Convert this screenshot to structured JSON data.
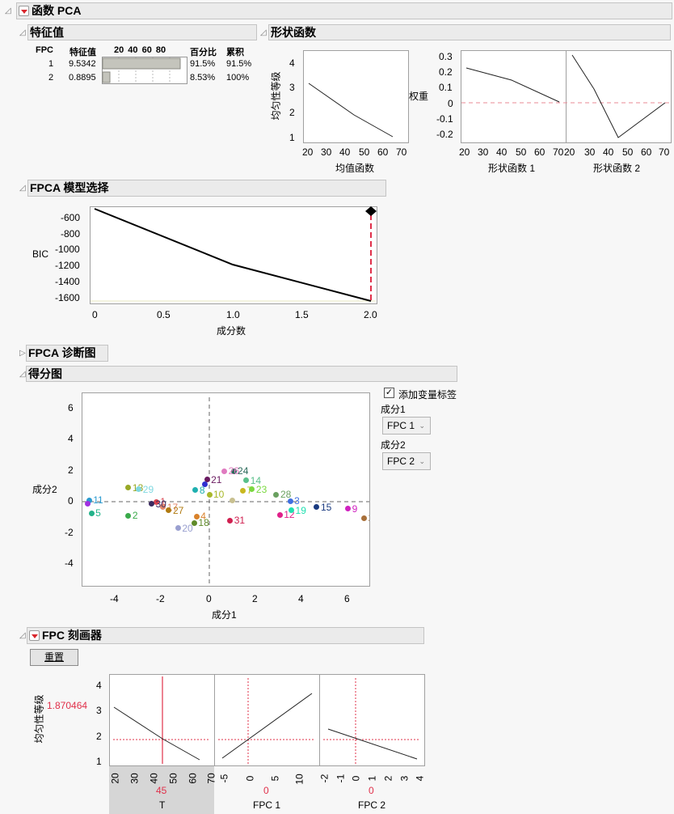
{
  "report": {
    "title": "函数 PCA"
  },
  "eigenvalues": {
    "title": "特征值",
    "columns": [
      "FPC",
      "特征值",
      "20 40 60 80",
      "百分比",
      "累积"
    ],
    "bar_ticks": [
      "20",
      "40",
      "60",
      "80"
    ],
    "rows": [
      {
        "fpc": "1",
        "eigenvalue": "9.5342",
        "percent": "91.5%",
        "cumulative": "91.5%",
        "bar_pct": 91.5
      },
      {
        "fpc": "2",
        "eigenvalue": "0.8895",
        "percent": "8.53%",
        "cumulative": "100%",
        "bar_pct": 8.53
      }
    ]
  },
  "shape_functions": {
    "title": "形状函数",
    "mean_plot": {
      "ylabel": "均匀性等级",
      "xlabel": "均值函数",
      "y_ticks": [
        "4",
        "3",
        "2",
        "1"
      ],
      "x_ticks": [
        "20",
        "30",
        "40",
        "50",
        "60",
        "70"
      ]
    },
    "weight_plot": {
      "ylabel": "权重",
      "y_ticks": [
        "0.3",
        "0.2",
        "0.1",
        "0",
        "-0.1",
        "-0.2"
      ],
      "panels": [
        {
          "xlabel": "形状函数 1",
          "x_ticks": [
            "20",
            "30",
            "40",
            "50",
            "60",
            "70"
          ]
        },
        {
          "xlabel": "形状函数 2",
          "x_ticks": [
            "20",
            "30",
            "40",
            "50",
            "60",
            "70"
          ]
        }
      ]
    }
  },
  "model_selection": {
    "title": "FPCA 模型选择",
    "ylabel": "BIC",
    "xlabel": "成分数",
    "y_ticks": [
      "-600",
      "-800",
      "-1000",
      "-1200",
      "-1400",
      "-1600"
    ],
    "x_ticks": [
      "0",
      "0.5",
      "1.0",
      "1.5",
      "2.0"
    ]
  },
  "diagnostics": {
    "title": "FPCA 诊断图"
  },
  "score_plot": {
    "title": "得分图",
    "ylabel": "成分2",
    "xlabel": "成分1",
    "y_ticks": [
      "6",
      "4",
      "2",
      "0",
      "-2",
      "-4"
    ],
    "x_ticks": [
      "-4",
      "-2",
      "0",
      "2",
      "4",
      "6"
    ],
    "add_labels_checkbox": "添加变量标签",
    "add_labels_checked": true,
    "component1_label": "成分1",
    "component1_value": "FPC 1",
    "component2_label": "成分2",
    "component2_value": "FPC 2"
  },
  "profiler": {
    "title": "FPC 刻画器",
    "reset_button": "重置",
    "ylabel": "均匀性等级",
    "current_y": "1.870464",
    "y_ticks": [
      "4",
      "3",
      "2",
      "1"
    ],
    "panels": [
      {
        "name": "T",
        "value": "45",
        "x_ticks": [
          "20",
          "30",
          "40",
          "50",
          "60",
          "70"
        ]
      },
      {
        "name": "FPC 1",
        "value": "0",
        "x_ticks": [
          "-5",
          "0",
          "5",
          "10"
        ]
      },
      {
        "name": "FPC 2",
        "value": "0",
        "x_ticks": [
          "-2",
          "-1",
          "0",
          "1",
          "2",
          "3",
          "4"
        ]
      }
    ]
  },
  "colors": {
    "accent_red": "#e0304a",
    "zero_line": "#e98a96",
    "section_bg": "#ebebeb",
    "bar_fill": "#c4c4bc"
  },
  "chart_data": [
    {
      "type": "bar",
      "title": "特征值",
      "categories": [
        "FPC 1",
        "FPC 2"
      ],
      "values": [
        91.5,
        8.53
      ],
      "xlabel": "百分比",
      "ylim": [
        0,
        100
      ]
    },
    {
      "type": "line",
      "title": "均值函数",
      "x": [
        20,
        45,
        70
      ],
      "values": [
        3.15,
        1.87,
        1.0
      ],
      "xlabel": "均值函数",
      "ylabel": "均匀性等级",
      "ylim": [
        0.8,
        4.5
      ]
    },
    {
      "type": "line",
      "title": "形状函数",
      "x": [
        20,
        45,
        70
      ],
      "series": [
        {
          "name": "形状函数 1",
          "values": [
            0.22,
            0.145,
            0.005
          ]
        },
        {
          "name": "形状函数 2",
          "values": [
            0.3,
            -0.215,
            0.005
          ]
        }
      ],
      "ylabel": "权重",
      "ylim": [
        -0.25,
        0.33
      ]
    },
    {
      "type": "line",
      "title": "FPCA 模型选择",
      "x": [
        0,
        1,
        2
      ],
      "values": [
        -490,
        -1190,
        -1630
      ],
      "xlabel": "成分数",
      "ylabel": "BIC",
      "ylim": [
        -1670,
        -480
      ],
      "annotations": [
        "selected: 2"
      ]
    },
    {
      "type": "scatter",
      "title": "得分图",
      "xlabel": "成分1",
      "ylabel": "成分2",
      "xlim": [
        -5.4,
        7.0
      ],
      "ylim": [
        -5.5,
        6.8
      ],
      "points": [
        {
          "label": "1",
          "x": -2.3,
          "y": 0.0,
          "color": "#d9434e"
        },
        {
          "label": "2",
          "x": -3.5,
          "y": -0.9,
          "color": "#3aaa4a"
        },
        {
          "label": "3",
          "x": 3.5,
          "y": 0.05,
          "color": "#3f6fe0"
        },
        {
          "label": "4",
          "x": -0.55,
          "y": -0.95,
          "color": "#d9822b"
        },
        {
          "label": "5",
          "x": -5.1,
          "y": -0.75,
          "color": "#22b38a"
        },
        {
          "label": "7",
          "x": 1.45,
          "y": 0.7,
          "color": "#c9b81f"
        },
        {
          "label": "8",
          "x": -0.6,
          "y": 0.75,
          "color": "#1fb0b0"
        },
        {
          "label": "9",
          "x": 6.0,
          "y": -0.45,
          "color": "#d022c0"
        },
        {
          "label": "10",
          "x": 0.0,
          "y": 0.45,
          "color": "#a8b82a"
        },
        {
          "label": "11",
          "x": -5.2,
          "y": 0.1,
          "color": "#2a9ad0"
        },
        {
          "label": "12",
          "x": 3.05,
          "y": -0.85,
          "color": "#e0208a"
        },
        {
          "label": "13",
          "x": -3.5,
          "y": 0.9,
          "color": "#98a826"
        },
        {
          "label": "14",
          "x": 1.6,
          "y": 1.35,
          "color": "#5ac08a"
        },
        {
          "label": "15",
          "x": 4.65,
          "y": -0.35,
          "color": "#1a3a80"
        },
        {
          "label": "17",
          "x": -2.0,
          "y": -0.35,
          "color": "#e2876a"
        },
        {
          "label": "18",
          "x": -0.65,
          "y": -1.35,
          "color": "#5f8a2a"
        },
        {
          "label": "19",
          "x": 3.55,
          "y": -0.55,
          "color": "#20e0b0"
        },
        {
          "label": "20",
          "x": -1.35,
          "y": -1.7,
          "color": "#9aa0d0"
        },
        {
          "label": "21",
          "x": -0.1,
          "y": 1.4,
          "color": "#6a1a60"
        },
        {
          "label": "22",
          "x": 6.7,
          "y": -1.05,
          "color": "#a8703a"
        },
        {
          "label": "23",
          "x": 1.85,
          "y": 0.8,
          "color": "#7ad840"
        },
        {
          "label": "24",
          "x": 1.05,
          "y": 1.95,
          "color": "#2a6a5a"
        },
        {
          "label": "26",
          "x": 0.65,
          "y": 1.95,
          "color": "#e07ac0"
        },
        {
          "label": "27",
          "x": -1.75,
          "y": -0.55,
          "color": "#b07a10"
        },
        {
          "label": "28",
          "x": 2.9,
          "y": 0.45,
          "color": "#6aa060"
        },
        {
          "label": "29",
          "x": -3.05,
          "y": 0.8,
          "color": "#80d8e0"
        },
        {
          "label": "30",
          "x": -2.5,
          "y": -0.15,
          "color": "#3a2a60"
        },
        {
          "label": "31",
          "x": 0.9,
          "y": -1.2,
          "color": "#d02050"
        },
        {
          "label": "",
          "x": -5.25,
          "y": -0.15,
          "color": "#a030e0"
        },
        {
          "label": "",
          "x": -0.2,
          "y": 1.1,
          "color": "#3030d0"
        },
        {
          "label": "",
          "x": 1.0,
          "y": 0.1,
          "color": "#c8c090"
        }
      ]
    },
    {
      "type": "line",
      "title": "FPC 刻画器",
      "ylabel": "均匀性等级",
      "series": [
        {
          "name": "T",
          "x": [
            20,
            45,
            70
          ],
          "values": [
            3.15,
            1.87,
            1.05
          ]
        },
        {
          "name": "FPC 1",
          "x": [
            -5.5,
            0,
            12.5
          ],
          "values": [
            1.15,
            1.87,
            3.7
          ]
        },
        {
          "name": "FPC 2",
          "x": [
            -1.8,
            0,
            3.8
          ],
          "values": [
            2.25,
            1.87,
            1.05
          ]
        }
      ],
      "ylim": [
        0.8,
        4.4
      ]
    }
  ]
}
